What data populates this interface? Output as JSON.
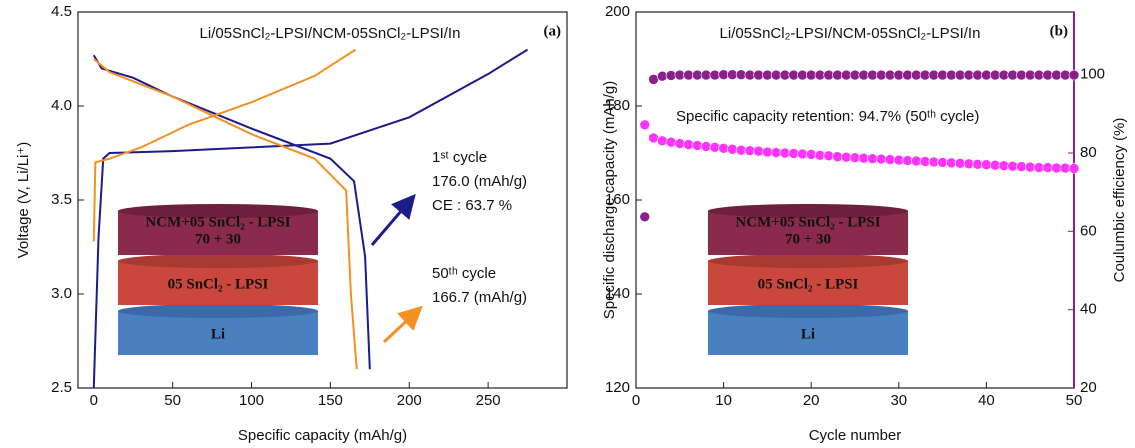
{
  "chart_data": [
    {
      "type": "line",
      "panel_label": "(a)",
      "title": "Li/05SnCl₂-LPSI/NCM-05SnCl₂-LPSI/In",
      "x_label": "Specific capacity (mAh/g)",
      "y_label": "Voltage (V, Li/Li⁺)",
      "xlim": [
        -10,
        300
      ],
      "ylim": [
        2.5,
        4.5
      ],
      "xticks": [
        0,
        50,
        100,
        150,
        200,
        250
      ],
      "yticks": [
        {
          "value": 2.5,
          "label": "2.5"
        },
        {
          "value": 3,
          "label": "3.0"
        },
        {
          "value": 3.5,
          "label": "3.5"
        },
        {
          "value": 4,
          "label": "4.0"
        },
        {
          "value": 4.5,
          "label": "4.5"
        }
      ],
      "series": [
        {
          "color": "#1c1c8a",
          "x": [
            0,
            3,
            6,
            10,
            50,
            100,
            150,
            200,
            250,
            275
          ],
          "values": [
            2.5,
            3.3,
            3.72,
            3.75,
            3.76,
            3.78,
            3.8,
            3.94,
            4.17,
            4.3
          ]
        },
        {
          "color": "#1c1c8a",
          "x": [
            0,
            5,
            25,
            50,
            100,
            150,
            165,
            172,
            175
          ],
          "values": [
            4.27,
            4.2,
            4.15,
            4.05,
            3.88,
            3.72,
            3.6,
            3.2,
            2.6
          ]
        },
        {
          "color": "#f39020",
          "x": [
            0,
            1,
            10,
            30,
            60,
            100,
            140,
            166
          ],
          "values": [
            3.28,
            3.7,
            3.72,
            3.78,
            3.9,
            4.02,
            4.16,
            4.3
          ]
        },
        {
          "color": "#f39020",
          "x": [
            0,
            10,
            50,
            100,
            140,
            160,
            163,
            166.7
          ],
          "values": [
            4.25,
            4.18,
            4.05,
            3.85,
            3.72,
            3.55,
            3.0,
            2.6
          ]
        }
      ],
      "annotations": [
        "1ˢᵗ cycle",
        "176.0 (mAh/g)",
        "CE : 63.7 %",
        "50ᵗʰ cycle",
        "166.7 (mAh/g)"
      ],
      "inset_labels": [
        "NCM+05 SnCl₂ - LPSI",
        "70 + 30",
        "05 SnCl₂ - LPSI",
        "Li"
      ]
    },
    {
      "type": "scatter",
      "panel_label": "(b)",
      "title": "Li/05SnCl₂-LPSI/NCM-05SnCl₂-LPSI/In",
      "x_label": "Cycle number",
      "y_label": "Specific discharge capacity (mAh/g)",
      "y2_label": "Coulumbic efficiency (%)",
      "xlim": [
        0,
        50
      ],
      "ylim": [
        120,
        200
      ],
      "y2lim": [
        20,
        116
      ],
      "xticks": [
        0,
        10,
        20,
        30,
        40,
        50
      ],
      "yticks": [
        120,
        140,
        160,
        180,
        200
      ],
      "y2ticks": [
        20,
        40,
        60,
        80,
        100
      ],
      "series": [
        {
          "color": "#ff33ff",
          "x": [
            1,
            2,
            3,
            4,
            5,
            6,
            7,
            8,
            9,
            10,
            11,
            12,
            13,
            14,
            15,
            16,
            17,
            18,
            19,
            20,
            21,
            22,
            23,
            24,
            25,
            26,
            27,
            28,
            29,
            30,
            31,
            32,
            33,
            34,
            35,
            36,
            37,
            38,
            39,
            40,
            41,
            42,
            43,
            44,
            45,
            46,
            47,
            48,
            49,
            50
          ],
          "values": [
            176.0,
            173.2,
            172.6,
            172.3,
            172.0,
            171.8,
            171.6,
            171.4,
            171.2,
            171.0,
            170.8,
            170.6,
            170.5,
            170.4,
            170.2,
            170.1,
            170.0,
            169.9,
            169.8,
            169.7,
            169.5,
            169.4,
            169.2,
            169.1,
            169.0,
            168.9,
            168.8,
            168.7,
            168.6,
            168.5,
            168.4,
            168.3,
            168.2,
            168.1,
            168.0,
            167.9,
            167.8,
            167.7,
            167.6,
            167.5,
            167.4,
            167.3,
            167.2,
            167.1,
            167.0,
            166.9,
            166.9,
            166.8,
            166.8,
            166.7
          ]
        },
        {
          "color": "#8b1f8b",
          "axis": "y2",
          "x": [
            1,
            2,
            3,
            4,
            5,
            6,
            7,
            8,
            9,
            10,
            11,
            12,
            13,
            14,
            15,
            16,
            17,
            18,
            19,
            20,
            21,
            22,
            23,
            24,
            25,
            26,
            27,
            28,
            29,
            30,
            31,
            32,
            33,
            34,
            35,
            36,
            37,
            38,
            39,
            40,
            41,
            42,
            43,
            44,
            45,
            46,
            47,
            48,
            49,
            50
          ],
          "values": [
            63.7,
            98.8,
            99.6,
            99.8,
            99.9,
            99.9,
            99.9,
            99.9,
            99.9,
            100,
            100,
            100,
            99.9,
            99.9,
            99.9,
            99.9,
            99.9,
            99.9,
            99.9,
            99.9,
            99.9,
            99.9,
            99.9,
            99.9,
            99.9,
            99.9,
            99.9,
            99.9,
            99.9,
            99.9,
            99.9,
            99.9,
            99.9,
            99.9,
            99.9,
            99.9,
            99.9,
            99.9,
            99.9,
            99.9,
            99.9,
            99.9,
            99.9,
            99.9,
            99.9,
            99.9,
            99.9,
            99.9,
            99.9,
            99.9
          ]
        }
      ],
      "annotations": [
        "Specific capacity retention: 94.7% (50ᵗʰ cycle)"
      ],
      "inset_labels": [
        "NCM+05 SnCl₂ - LPSI",
        "70 + 30",
        "05 SnCl₂ - LPSI",
        "Li"
      ]
    }
  ]
}
